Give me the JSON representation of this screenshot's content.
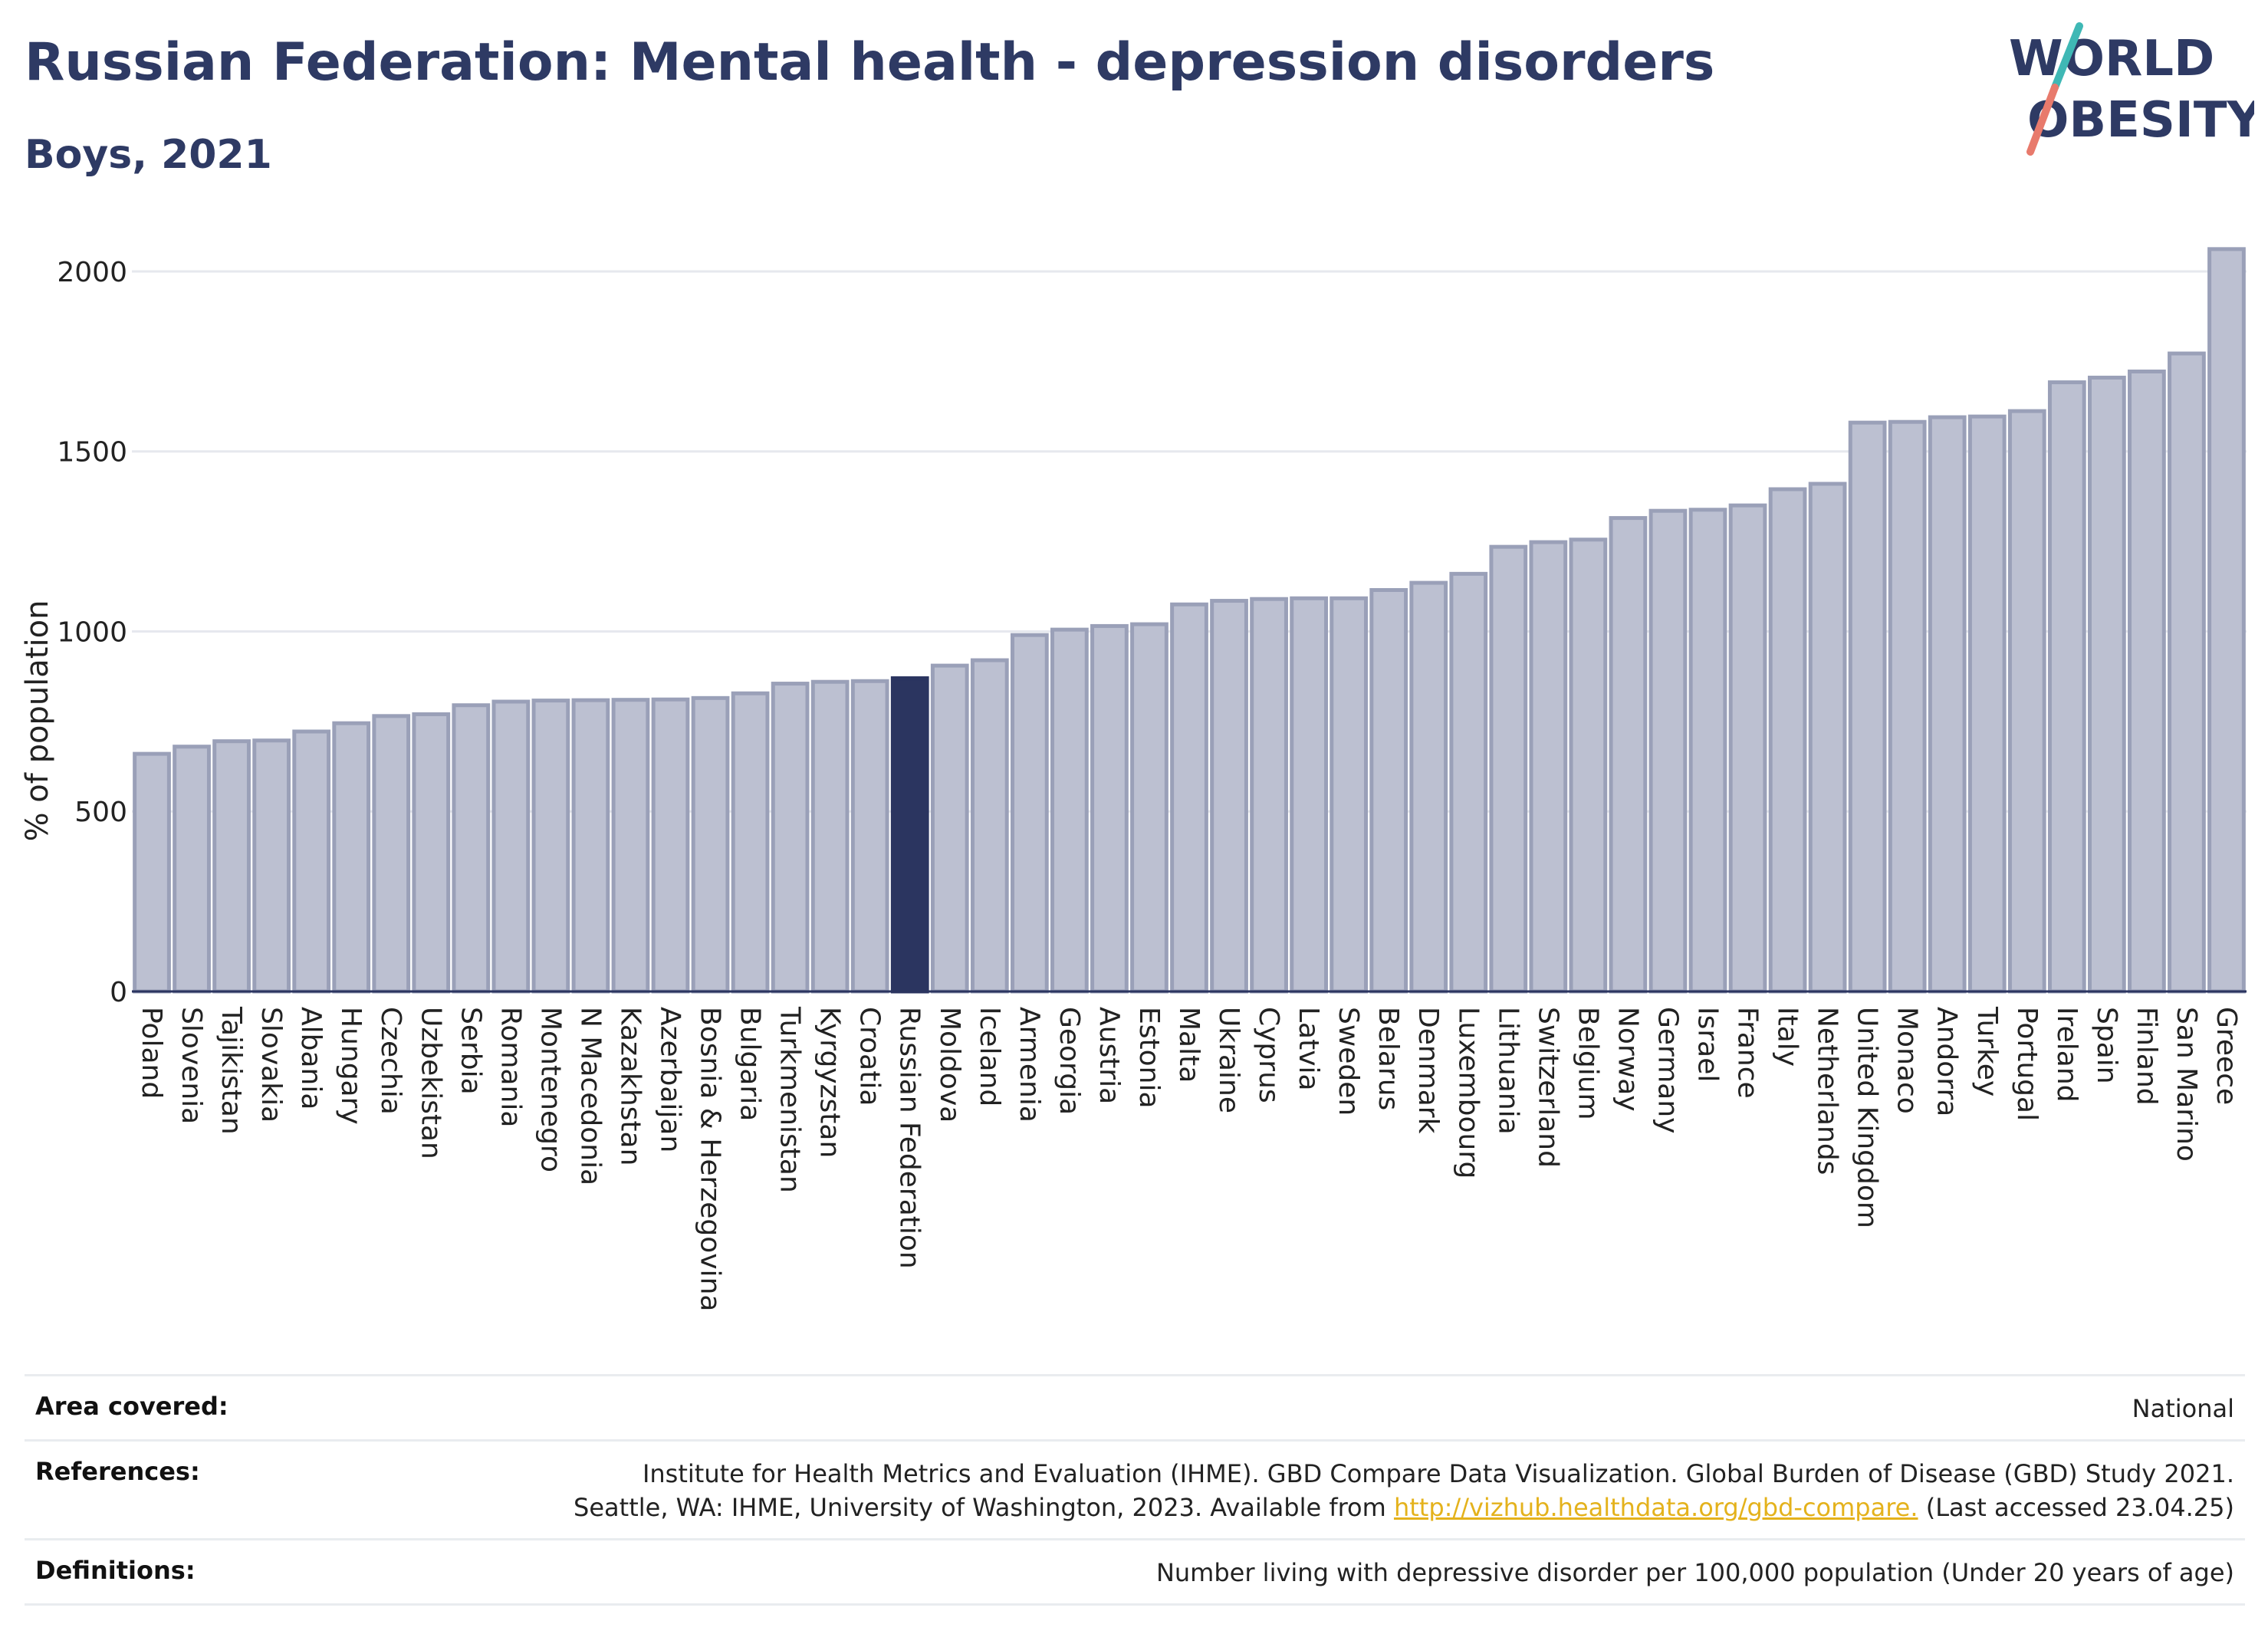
{
  "header": {
    "title": "Russian Federation: Mental health - depression disorders",
    "subtitle": "Boys, 2021"
  },
  "logo": {
    "line1": "WORLD",
    "line2": "OBESITY"
  },
  "colors": {
    "bar": "#bcc0d1",
    "bar_border": "#9aa0b8",
    "highlight": "#2b3560",
    "grid": "#e6e8ee",
    "link": "#e4b21c"
  },
  "chart_data": {
    "type": "bar",
    "ylabel": "% of population",
    "xlabel": "",
    "ylim": [
      0,
      2100
    ],
    "yticks": [
      0,
      500,
      1000,
      1500,
      2000
    ],
    "grid": true,
    "highlight": "Russian Federation",
    "categories": [
      "Poland",
      "Slovenia",
      "Tajikistan",
      "Slovakia",
      "Albania",
      "Hungary",
      "Czechia",
      "Uzbekistan",
      "Serbia",
      "Romania",
      "Montenegro",
      "N Macedonia",
      "Kazakhstan",
      "Azerbaijan",
      "Bosnia & Herzegovina",
      "Bulgaria",
      "Turkmenistan",
      "Kyrgyzstan",
      "Croatia",
      "Russian Federation",
      "Moldova",
      "Iceland",
      "Armenia",
      "Georgia",
      "Austria",
      "Estonia",
      "Malta",
      "Ukraine",
      "Cyprus",
      "Latvia",
      "Sweden",
      "Belarus",
      "Denmark",
      "Luxembourg",
      "Lithuania",
      "Switzerland",
      "Belgium",
      "Norway",
      "Germany",
      "Israel",
      "France",
      "Italy",
      "Netherlands",
      "United Kingdom",
      "Monaco",
      "Andorra",
      "Turkey",
      "Portugal",
      "Ireland",
      "Spain",
      "Finland",
      "San Marino",
      "Greece"
    ],
    "values": [
      660,
      680,
      695,
      697,
      722,
      745,
      765,
      770,
      795,
      805,
      808,
      809,
      810,
      811,
      815,
      828,
      855,
      860,
      862,
      870,
      905,
      920,
      990,
      1005,
      1015,
      1020,
      1075,
      1085,
      1090,
      1092,
      1092,
      1115,
      1135,
      1160,
      1235,
      1248,
      1255,
      1315,
      1335,
      1338,
      1350,
      1395,
      1410,
      1580,
      1582,
      1595,
      1597,
      1612,
      1692,
      1705,
      1722,
      1772,
      2062
    ]
  },
  "footer": {
    "area_label": "Area covered:",
    "area_value": "National",
    "ref_label": "References:",
    "ref_line1": "Institute for Health Metrics and Evaluation (IHME). GBD Compare Data Visualization. Global Burden of Disease (GBD) Study 2021.",
    "ref_line2_prefix": "Seattle, WA: IHME, University of Washington, 2023. Available from ",
    "ref_link": "http://vizhub.healthdata.org/gbd-compare.",
    "ref_line2_suffix": " (Last accessed 23.04.25)",
    "def_label": "Definitions:",
    "def_value": "Number living with depressive disorder per 100,000 population (Under 20 years of age)"
  }
}
